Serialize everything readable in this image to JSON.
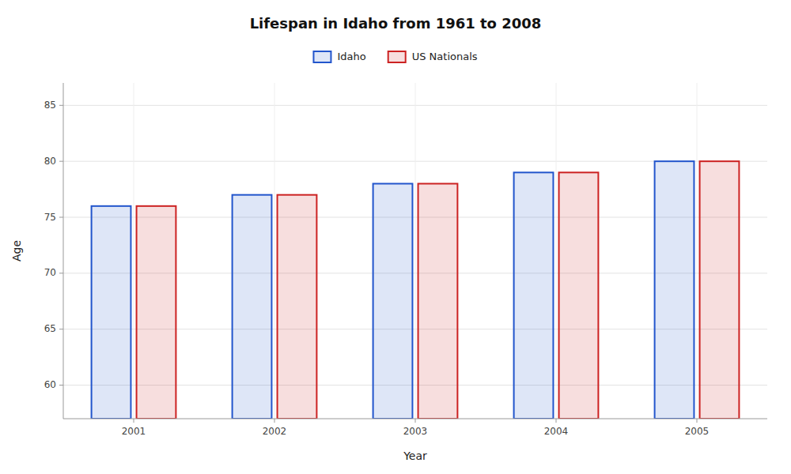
{
  "chart_data": {
    "type": "bar",
    "title": "Lifespan in Idaho from 1961 to 2008",
    "x_label": "Year",
    "y_label": "Age",
    "categories": [
      "2001",
      "2002",
      "2003",
      "2004",
      "2005"
    ],
    "series": [
      {
        "name": "Idaho",
        "color": "#2255cc",
        "values": [
          76,
          77,
          78,
          79,
          80
        ]
      },
      {
        "name": "US Nationals",
        "color": "#cc2222",
        "values": [
          76,
          77,
          78,
          79,
          80
        ]
      }
    ],
    "ylim": [
      57,
      87
    ],
    "yticks": [
      60,
      65,
      70,
      75,
      80,
      85
    ],
    "grid": true,
    "legend": "top"
  }
}
